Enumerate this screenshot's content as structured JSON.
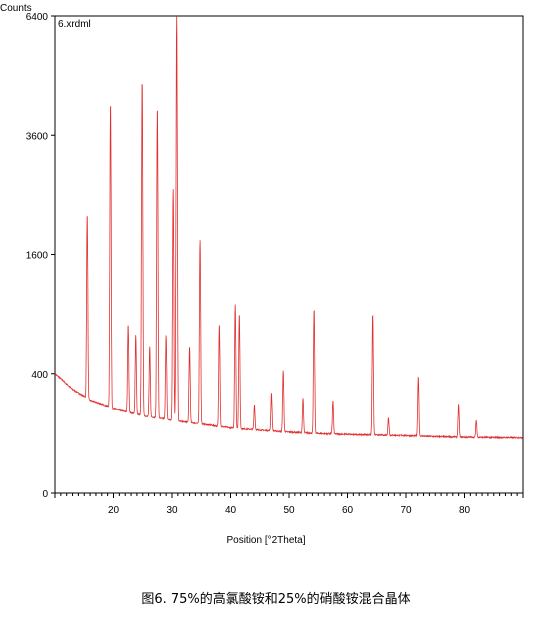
{
  "chart_data": {
    "type": "line",
    "title": "",
    "corner_label": "Counts",
    "file_label": "6.xrdml",
    "xlabel": "Position [°2Theta]",
    "ylabel": "",
    "xlim": [
      10,
      90
    ],
    "ylim_sqrt": [
      0,
      6400
    ],
    "y_scale": "sqrt",
    "y_ticks": [
      0,
      400,
      1600,
      3600,
      6400
    ],
    "x_ticks": [
      20,
      30,
      40,
      50,
      60,
      70,
      80
    ],
    "line_color": "#e03030",
    "background": {
      "points": [
        [
          10,
          400
        ],
        [
          13,
          300
        ],
        [
          16,
          240
        ],
        [
          20,
          200
        ],
        [
          25,
          170
        ],
        [
          30,
          150
        ],
        [
          35,
          135
        ],
        [
          40,
          120
        ],
        [
          45,
          112
        ],
        [
          50,
          105
        ],
        [
          55,
          100
        ],
        [
          60,
          97
        ],
        [
          65,
          95
        ],
        [
          70,
          93
        ],
        [
          75,
          90
        ],
        [
          80,
          88
        ],
        [
          85,
          87
        ],
        [
          90,
          86
        ]
      ]
    },
    "peaks": [
      {
        "x": 15.5,
        "y": 2200
      },
      {
        "x": 19.5,
        "y": 4300
      },
      {
        "x": 22.5,
        "y": 800
      },
      {
        "x": 23.8,
        "y": 700
      },
      {
        "x": 24.9,
        "y": 4800
      },
      {
        "x": 26.2,
        "y": 600
      },
      {
        "x": 27.5,
        "y": 4200
      },
      {
        "x": 29.0,
        "y": 700
      },
      {
        "x": 30.2,
        "y": 2600
      },
      {
        "x": 30.8,
        "y": 6400
      },
      {
        "x": 33.0,
        "y": 600
      },
      {
        "x": 34.8,
        "y": 1800
      },
      {
        "x": 38.1,
        "y": 800
      },
      {
        "x": 40.8,
        "y": 1000
      },
      {
        "x": 41.5,
        "y": 900
      },
      {
        "x": 44.1,
        "y": 220
      },
      {
        "x": 47.0,
        "y": 280
      },
      {
        "x": 49.0,
        "y": 420
      },
      {
        "x": 52.4,
        "y": 250
      },
      {
        "x": 54.3,
        "y": 950
      },
      {
        "x": 57.5,
        "y": 240
      },
      {
        "x": 64.3,
        "y": 900
      },
      {
        "x": 67.0,
        "y": 160
      },
      {
        "x": 72.1,
        "y": 380
      },
      {
        "x": 79.0,
        "y": 220
      },
      {
        "x": 82.0,
        "y": 150
      }
    ]
  },
  "caption": "图6. 75%的高氯酸铵和25%的硝酸铵混合晶体"
}
